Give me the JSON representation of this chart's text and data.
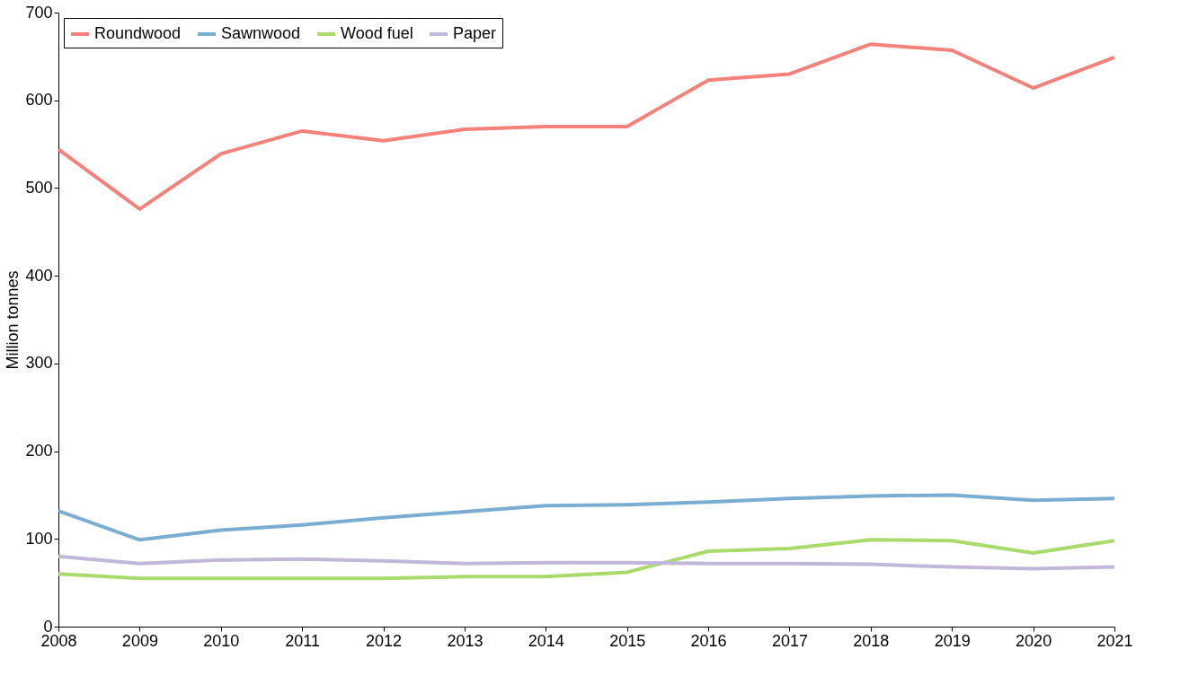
{
  "chart_data": {
    "type": "line",
    "ylabel": "Million tonnes",
    "x": [
      2008,
      2009,
      2010,
      2011,
      2012,
      2013,
      2014,
      2015,
      2016,
      2017,
      2018,
      2019,
      2020,
      2021
    ],
    "series": [
      {
        "name": "Roundwood",
        "color": "#f4827a",
        "values": [
          544,
          476,
          539,
          565,
          554,
          567,
          570,
          570,
          623,
          630,
          664,
          657,
          614,
          649
        ]
      },
      {
        "name": "Sawnwood",
        "color": "#7badd2",
        "values": [
          132,
          99,
          110,
          116,
          124,
          131,
          138,
          139,
          142,
          146,
          149,
          150,
          144,
          146
        ]
      },
      {
        "name": "Wood fuel",
        "color": "#a9da6c",
        "values": [
          60,
          55,
          55,
          55,
          55,
          57,
          57,
          62,
          86,
          89,
          99,
          98,
          84,
          98
        ]
      },
      {
        "name": "Paper",
        "color": "#c1b7da",
        "values": [
          80,
          72,
          76,
          77,
          75,
          72,
          73,
          73,
          72,
          72,
          71,
          68,
          66,
          68
        ]
      }
    ],
    "xlim": [
      2008,
      2021
    ],
    "xticks": [
      2008,
      2009,
      2010,
      2011,
      2012,
      2013,
      2014,
      2015,
      2016,
      2017,
      2018,
      2019,
      2020,
      2021
    ],
    "ylim": [
      0,
      700
    ],
    "yticks": [
      0,
      100,
      200,
      300,
      400,
      500,
      600,
      700
    ],
    "grid": false,
    "legend": "top left",
    "marker": "none",
    "line_style": "solid"
  }
}
